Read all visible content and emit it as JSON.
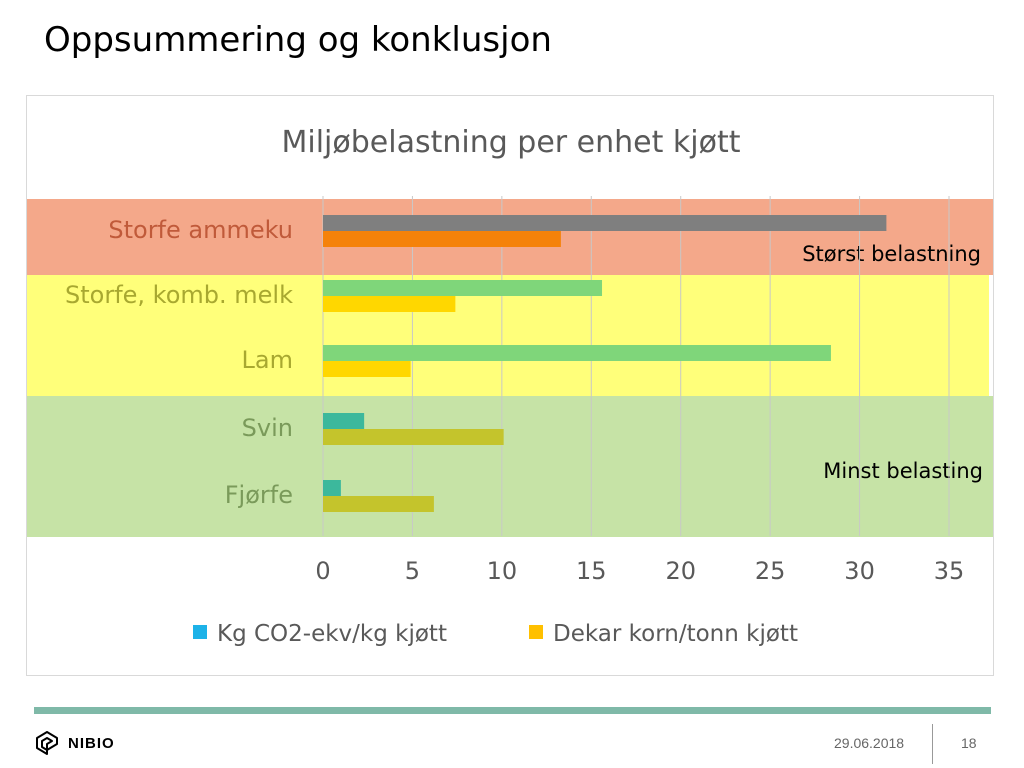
{
  "slide": {
    "title": "Oppsummering og konklusjon",
    "footer": {
      "logo_text": "NIBIO",
      "date": "29.06.2018",
      "page": "18"
    }
  },
  "chart_data": {
    "type": "bar",
    "orientation": "horizontal",
    "title": "Miljøbelastning per enhet kjøtt",
    "categories": [
      "Storfe ammeku",
      "Storfe, komb. melk",
      "Lam",
      "Svin",
      "Fjørfe"
    ],
    "series": [
      {
        "name": "Kg CO2-ekv/kg kjøtt",
        "values": [
          31.5,
          15.6,
          28.4,
          2.3,
          1.0
        ],
        "legend_color": "#1db2e8",
        "bar_colors": [
          "#7f7f7f",
          "#7fd67a",
          "#7fd67a",
          "#3cb89c",
          "#3cb89c"
        ]
      },
      {
        "name": "Dekar korn/tonn kjøtt",
        "values": [
          13.3,
          7.4,
          4.9,
          10.1,
          6.2
        ],
        "legend_color": "#ffc000",
        "bar_colors": [
          "#f5820a",
          "#ffd700",
          "#ffd700",
          "#c4c42c",
          "#c4c42c"
        ]
      }
    ],
    "xlim": [
      0,
      35
    ],
    "xticks": [
      0,
      5,
      10,
      15,
      20,
      25,
      30,
      35
    ],
    "gridlines": true,
    "legend_position": "bottom",
    "zones": [
      {
        "label": "Størst belastning",
        "color": "#f4a88a",
        "categories": [
          "Storfe ammeku"
        ]
      },
      {
        "label": "",
        "color": "#ffff7a",
        "categories": [
          "Storfe, komb. melk",
          "Lam"
        ]
      },
      {
        "label": "Minst belasting",
        "color": "#c6e3a6",
        "categories": [
          "Svin",
          "Fjørfe"
        ]
      }
    ],
    "category_label_colors": [
      "#c05a3a",
      "#a8a830",
      "#a8a830",
      "#7a9a5a",
      "#7a9a5a"
    ]
  }
}
